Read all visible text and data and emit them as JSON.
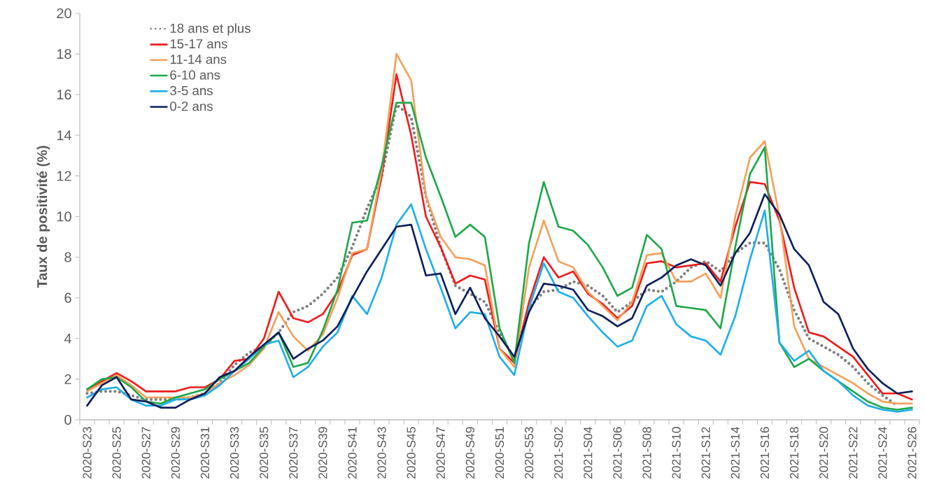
{
  "chart_data": {
    "type": "line",
    "ylabel": "Taux de positivité (%)",
    "categories": [
      "2020-S23",
      null,
      "2020-S25",
      null,
      "2020-S27",
      null,
      "2020-S29",
      null,
      "2020-S31",
      null,
      "2020-S33",
      null,
      "2020-S35",
      null,
      "2020-S37",
      null,
      "2020-S39",
      null,
      "2020-S41",
      null,
      "2020-S43",
      null,
      "2020-S45",
      null,
      "2020-S47",
      null,
      "2020-S49",
      null,
      "2020-S51",
      null,
      "2020-S53",
      null,
      "2021-S02",
      null,
      "2021-S04",
      null,
      "2021-S06",
      null,
      "2021-S08",
      null,
      "2021-S10",
      null,
      "2021-S12",
      null,
      "2021-S14",
      null,
      "2021-S16",
      null,
      "2021-S18",
      null,
      "2021-S20",
      null,
      "2021-S22",
      null,
      "2021-S24",
      null,
      "2021-S26"
    ],
    "ylim": [
      0,
      20
    ],
    "yticks": [
      0,
      2,
      4,
      6,
      8,
      10,
      12,
      14,
      16,
      18,
      20
    ],
    "legend": "top left",
    "series": [
      {
        "name": "18 ans et plus",
        "color": "#808080",
        "line_style": "dotted",
        "values": [
          1.3,
          1.4,
          1.4,
          1.2,
          1.0,
          1.0,
          1.0,
          1.1,
          1.3,
          1.8,
          2.7,
          3.3,
          3.6,
          4.3,
          5.3,
          5.6,
          6.2,
          7.0,
          8.5,
          10.4,
          12.0,
          15.5,
          14.9,
          11.0,
          8.5,
          6.6,
          6.2,
          5.8,
          4.3,
          3.0,
          5.5,
          6.3,
          6.4,
          6.8,
          6.6,
          6.1,
          5.3,
          5.8,
          6.4,
          6.3,
          6.8,
          7.5,
          7.8,
          7.3,
          8.2,
          8.7,
          8.7,
          7.4,
          5.4,
          4.0,
          3.6,
          3.2,
          2.6,
          1.8,
          1.2,
          0.7,
          null
        ]
      },
      {
        "name": "15-17 ans",
        "color": "#ee1c1c",
        "line_style": "solid",
        "values": [
          1.5,
          1.9,
          2.3,
          1.9,
          1.4,
          1.4,
          1.4,
          1.6,
          1.6,
          2.0,
          2.9,
          3.0,
          4.0,
          6.3,
          5.0,
          4.8,
          5.2,
          6.3,
          8.1,
          8.4,
          12.0,
          17.0,
          14.0,
          10.0,
          8.5,
          6.7,
          7.1,
          6.9,
          3.5,
          2.8,
          5.8,
          8.0,
          7.0,
          7.3,
          6.2,
          5.7,
          5.0,
          5.6,
          7.7,
          7.8,
          7.5,
          7.6,
          7.7,
          6.8,
          9.5,
          11.7,
          11.6,
          9.8,
          6.5,
          4.3,
          4.1,
          3.6,
          3.1,
          2.2,
          1.3,
          1.3,
          1.0
        ]
      },
      {
        "name": "11-14 ans",
        "color": "#f4a05a",
        "line_style": "solid",
        "values": [
          1.4,
          1.8,
          2.2,
          1.7,
          1.1,
          1.1,
          1.1,
          1.1,
          1.3,
          1.8,
          2.2,
          2.7,
          3.5,
          5.3,
          4.1,
          3.4,
          4.2,
          6.0,
          8.2,
          8.4,
          12.3,
          18.0,
          16.7,
          11.0,
          9.0,
          8.0,
          7.9,
          7.6,
          3.5,
          2.6,
          7.5,
          9.8,
          7.8,
          7.5,
          6.3,
          5.6,
          4.9,
          5.8,
          8.1,
          8.2,
          6.8,
          6.8,
          7.2,
          6.0,
          10.0,
          12.9,
          13.7,
          10.0,
          4.6,
          3.0,
          2.6,
          2.2,
          1.8,
          1.3,
          0.9,
          0.8,
          0.8
        ]
      },
      {
        "name": "6-10 ans",
        "color": "#1fa84a",
        "line_style": "solid",
        "values": [
          1.5,
          2.0,
          2.1,
          1.6,
          0.9,
          0.8,
          1.1,
          1.3,
          1.5,
          2.0,
          2.4,
          2.8,
          3.6,
          4.3,
          2.6,
          2.8,
          4.4,
          6.4,
          9.7,
          9.8,
          12.5,
          15.6,
          15.6,
          12.9,
          11.0,
          9.0,
          9.6,
          9.0,
          4.5,
          2.8,
          8.7,
          11.7,
          9.5,
          9.3,
          8.6,
          7.5,
          6.1,
          6.5,
          9.1,
          8.4,
          5.6,
          5.5,
          5.4,
          4.5,
          8.5,
          12.1,
          13.4,
          3.8,
          2.6,
          3.0,
          2.4,
          1.9,
          1.4,
          0.9,
          0.6,
          0.5,
          0.6
        ]
      },
      {
        "name": "3-5 ans",
        "color": "#22aee8",
        "line_style": "solid",
        "values": [
          1.1,
          1.5,
          1.6,
          1.0,
          0.7,
          0.7,
          1.0,
          1.0,
          1.2,
          1.7,
          2.4,
          3.0,
          3.7,
          3.9,
          2.1,
          2.6,
          3.6,
          4.3,
          6.1,
          5.2,
          7.0,
          9.6,
          10.6,
          8.4,
          6.5,
          4.5,
          5.3,
          5.2,
          3.1,
          2.2,
          5.5,
          7.7,
          6.3,
          6.0,
          5.1,
          4.3,
          3.6,
          3.9,
          5.6,
          6.1,
          4.7,
          4.1,
          3.9,
          3.2,
          5.1,
          7.9,
          10.3,
          3.8,
          2.9,
          3.4,
          2.4,
          1.9,
          1.2,
          0.7,
          0.5,
          0.4,
          0.5
        ]
      },
      {
        "name": "0-2 ans",
        "color": "#0c1f5c",
        "line_style": "solid",
        "values": [
          0.7,
          1.7,
          2.1,
          1.0,
          0.9,
          0.6,
          0.6,
          1.0,
          1.3,
          2.1,
          2.4,
          3.1,
          3.7,
          4.3,
          3.0,
          3.5,
          3.9,
          4.6,
          6.0,
          7.3,
          8.4,
          9.5,
          9.6,
          7.1,
          7.2,
          5.2,
          6.5,
          5.0,
          4.1,
          3.1,
          5.3,
          6.7,
          6.6,
          6.4,
          5.4,
          5.1,
          4.6,
          5.0,
          6.6,
          7.0,
          7.6,
          7.9,
          7.6,
          6.6,
          8.2,
          9.2,
          11.1,
          10.1,
          8.4,
          7.6,
          5.8,
          5.2,
          3.5,
          2.5,
          1.8,
          1.3,
          1.4
        ]
      }
    ]
  }
}
